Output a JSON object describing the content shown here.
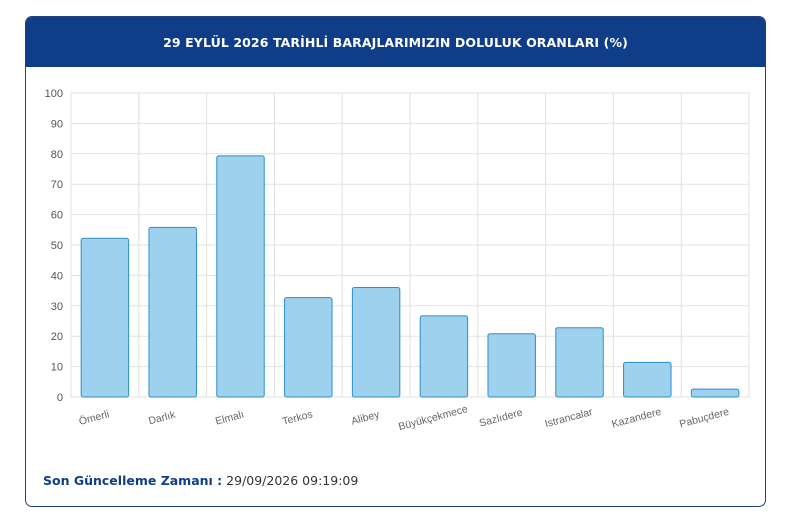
{
  "header": {
    "title": "29 EYLÜL 2026 TARİHLİ BARAJLARIMIZIN DOLULUK ORANLARI (%)"
  },
  "footer": {
    "label": "Son Güncelleme Zamanı :",
    "value": " 29/09/2026 09:19:09"
  },
  "colors": {
    "header_bg": "#0f3d88",
    "bar_fill": "#9ed1ee",
    "bar_stroke": "#2d8fc7",
    "grid": "#e2e2e2"
  },
  "chart_data": {
    "type": "bar",
    "title": "29 EYLÜL 2026 TARİHLİ BARAJLARIMIZIN DOLULUK ORANLARI (%)",
    "xlabel": "",
    "ylabel": "",
    "ylim": [
      0,
      100
    ],
    "yticks": [
      0,
      10,
      20,
      30,
      40,
      50,
      60,
      70,
      80,
      90,
      100
    ],
    "grid": true,
    "categories": [
      "Ömerli",
      "Darlık",
      "Elmalı",
      "Terkos",
      "Alibey",
      "Büyükçekmece",
      "Sazlıdere",
      "Istrancalar",
      "Kazandere",
      "Pabuçdere"
    ],
    "values": [
      52.2,
      55.8,
      79.3,
      32.7,
      36.0,
      26.7,
      20.8,
      22.8,
      11.4,
      2.6
    ]
  }
}
